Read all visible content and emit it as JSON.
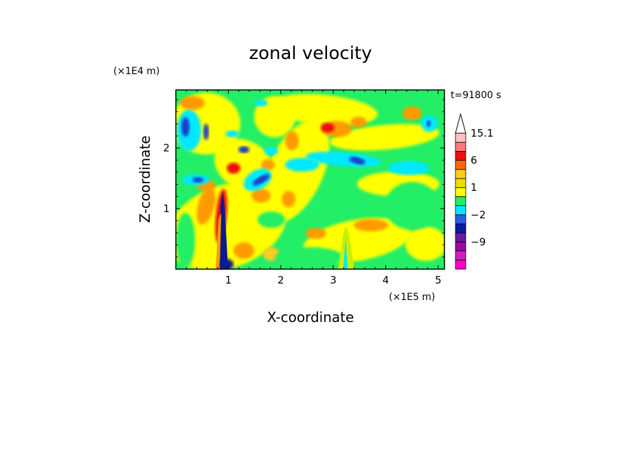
{
  "chart_data": {
    "type": "heatmap",
    "title": "zonal velocity",
    "xlabel": "X-coordinate",
    "ylabel": "Z-coordinate",
    "x_unit": "(×1E5 m)",
    "y_unit": "(×1E4 m)",
    "time_label": "t=91800 s",
    "xlim": [
      0,
      5.12
    ],
    "ylim": [
      0,
      2.96
    ],
    "x_ticks": [
      "1",
      "2",
      "3",
      "4",
      "5"
    ],
    "y_ticks": [
      "1",
      "2"
    ],
    "colorbar": {
      "labels": [
        "15.1",
        "6",
        "1",
        "−2",
        "−9"
      ],
      "label_values": [
        15.1,
        6,
        1,
        -2,
        -9
      ],
      "levels": [
        -15,
        -12,
        -9,
        -6,
        -3,
        -2,
        -1,
        0,
        1,
        2,
        3,
        6,
        9,
        12,
        15.1
      ],
      "colors": [
        "#ff00c8",
        "#cc22bb",
        "#9a0aa5",
        "#6a1aa0",
        "#0a1aa8",
        "#2a5de0",
        "#00e8ff",
        "#22ee66",
        "#ffff00",
        "#e8e000",
        "#ffcc22",
        "#ff6a00",
        "#ee1010",
        "#ff7a7a",
        "#ffc0c0"
      ]
    },
    "field_description": "zonal velocity contour field"
  }
}
